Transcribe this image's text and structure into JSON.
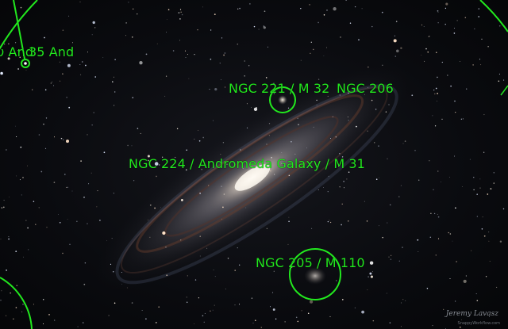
{
  "labels": {
    "upsilon_and": "υ And",
    "and_35": "35 And",
    "ngc221": "NGC 221 / M 32",
    "ngc206": "NGC 206",
    "ngc224": "NGC 224 / Andromeda Galaxy / M 31",
    "ngc205": "NGC 205 / M 110"
  },
  "watermark": {
    "signature": "Jeremy Lavasz",
    "credit": "SnappyWorkflow.com"
  },
  "colors": {
    "annotation": "#22e81e",
    "background": "#07080b"
  }
}
